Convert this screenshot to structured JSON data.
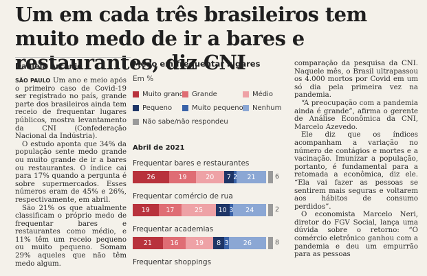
{
  "article": {
    "headline": "Um em cada três brasileiros tem muito medo de ir a bares e restaurantes, diz CNI",
    "byline": "Daniela Arcanjo",
    "dateline": "SÃO PAULO",
    "col_left": [
      "Um ano e meio após o primeiro caso de Covid-19 ser registrado no país, grande parte dos brasileiros ainda tem receio de frequentar lugares públicos, mostra levantamento da CNI (Confederação Nacional da Indústria).",
      "O estudo aponta que 34% da população sente medo grande ou muito grande de ir a bares ou restaurantes. O índice cai para 17% quando a pergunta é sobre supermercados. Esses números eram de 45% e 26%, respectivamente, em abril.",
      "São 21% os que atualmente classificam o próprio medo de frequentar bares e restaurantes como médio, e 11% têm um receio pequeno ou muito pequeno. Somam 29% aqueles que não têm medo algum."
    ],
    "col_right": [
      "comparação da pesquisa da CNI. Naquele mês, o Brasil ultrapassou os 4.000 mortos por Covid em um só dia pela primeira vez na pandemia.",
      "“A preocupação com a pandemia ainda é grande”, afirma o gerente de Análise Econômica da CNI, Marcelo Azevedo.",
      "Ele diz que os índices acompanham a variação no número de contágios e mortes e a vacinação. Imunizar a população, portanto, é fundamental para a retomada a econômica, diz ele. “Ela vai fazer as pessoas se sentirem mais seguras e voltarem aos hábitos de consumo perdidos”.",
      "O economista Marcelo Neri, diretor do FGV Social, lança uma dúvida sobre o retorno: “O comércio eletrônico ganhou com a pandemia e deu um empurrão para as pessoas"
    ]
  },
  "chart_data": {
    "type": "bar",
    "title": "Medo em frequentar lugares",
    "unit": "Em %",
    "period": "Abril de 2021",
    "legend": [
      {
        "name": "Muito grande",
        "color": "#b8323c"
      },
      {
        "name": "Grande",
        "color": "#df6d74"
      },
      {
        "name": "Médio",
        "color": "#eea2a6"
      },
      {
        "name": "Pequeno",
        "color": "#1e3566"
      },
      {
        "name": "Muito pequeno",
        "color": "#3a63a8"
      },
      {
        "name": "Nenhum",
        "color": "#8ba7d4"
      },
      {
        "name": "Não sabe/não respondeu",
        "color": "#9a9a9a"
      }
    ],
    "categories": [
      "Frequentar bares e restaurantes",
      "Frequentar comércio de rua",
      "Frequentar academias",
      "Frequentar shoppings"
    ],
    "series": [
      {
        "name": "Muito grande",
        "values": [
          26,
          19,
          21,
          null
        ]
      },
      {
        "name": "Grande",
        "values": [
          19,
          17,
          16,
          null
        ]
      },
      {
        "name": "Médio",
        "values": [
          20,
          25,
          19,
          null
        ]
      },
      {
        "name": "Pequeno",
        "values": [
          7,
          10,
          8,
          null
        ]
      },
      {
        "name": "Muito pequeno",
        "values": [
          2,
          3,
          3,
          null
        ]
      },
      {
        "name": "Nenhum",
        "values": [
          21,
          24,
          26,
          null
        ]
      },
      {
        "name": "Não sabe/não respondeu",
        "values": [
          6,
          2,
          8,
          null
        ]
      }
    ]
  }
}
